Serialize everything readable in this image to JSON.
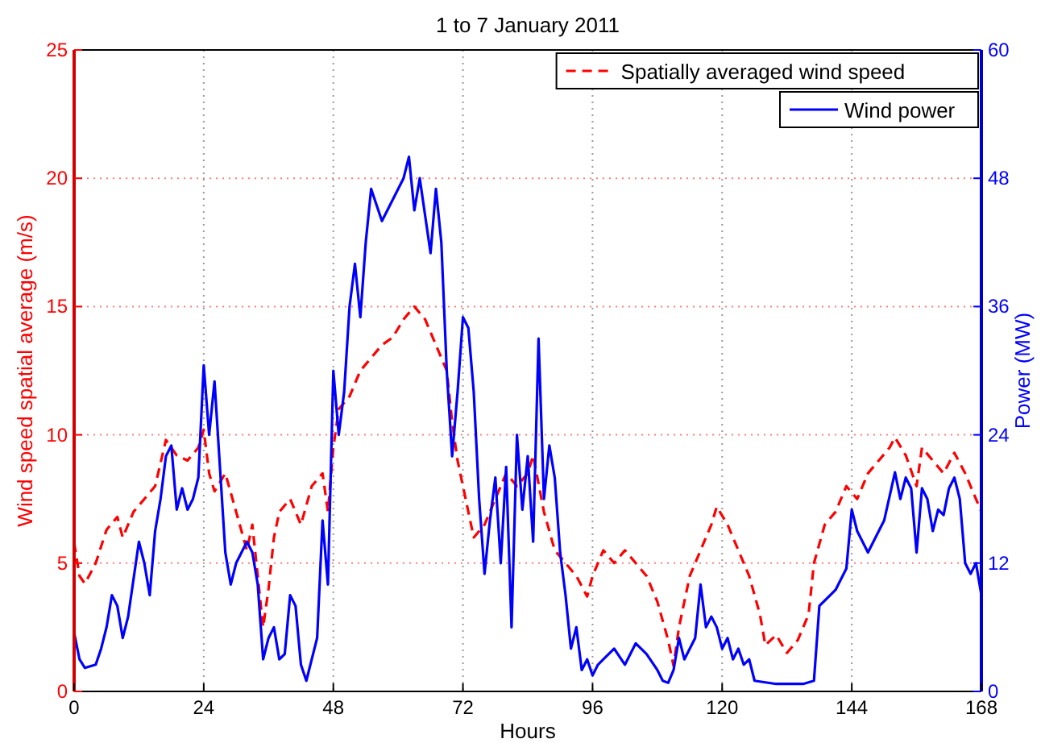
{
  "chart_data": {
    "type": "line",
    "title": "1 to 7 January 2011",
    "xlabel": "Hours",
    "ylabel": "Wind speed spatial average (m/s)",
    "y2label": "Power (MW)",
    "xlim": [
      0,
      168
    ],
    "xticks": [
      0,
      24,
      48,
      72,
      96,
      120,
      144,
      168
    ],
    "ylim": [
      0,
      25
    ],
    "yticks": [
      0,
      5,
      10,
      15,
      20,
      25
    ],
    "y2lim": [
      0,
      60
    ],
    "y2ticks": [
      0,
      12,
      24,
      36,
      48,
      60
    ],
    "grid": true,
    "legend": "top right",
    "series": [
      {
        "name": "Spatially averaged wind speed",
        "color": "#ff0000",
        "line_style": "dashed",
        "x": [
          0,
          1,
          2,
          4,
          6,
          8,
          9,
          11,
          13,
          15,
          17,
          19,
          21,
          23,
          24,
          25,
          26,
          28,
          30,
          32,
          33,
          34,
          35,
          36,
          37,
          38,
          40,
          42,
          44,
          46,
          47,
          48,
          49,
          51,
          53,
          55,
          57,
          59,
          61,
          63,
          65,
          67,
          69,
          70,
          71,
          72,
          74,
          76,
          78,
          80,
          82,
          84,
          85,
          87,
          89,
          91,
          93,
          95,
          96,
          98,
          100,
          102,
          104,
          106,
          108,
          110,
          111,
          112,
          114,
          116,
          118,
          119,
          121,
          123,
          125,
          127,
          128,
          130,
          132,
          134,
          136,
          137,
          139,
          141,
          143,
          145,
          147,
          149,
          151,
          152,
          154,
          156,
          157,
          159,
          161,
          163,
          165,
          167,
          168
        ],
        "values": [
          5.8,
          4.5,
          4.2,
          5,
          6.3,
          6.8,
          6,
          7,
          7.5,
          8,
          9.8,
          9.2,
          9,
          9.5,
          10.2,
          8.5,
          7.8,
          8.5,
          7,
          5.5,
          6.5,
          4.5,
          2.5,
          4,
          6,
          7,
          7.5,
          6.5,
          8,
          8.5,
          7,
          9.5,
          11,
          11.5,
          12.5,
          13,
          13.5,
          13.8,
          14.5,
          15,
          14.5,
          13.5,
          12.5,
          10.5,
          9,
          8,
          6,
          6.5,
          7.5,
          8.5,
          8,
          8.5,
          9.2,
          7,
          5.5,
          5,
          4.5,
          3.7,
          4.5,
          5.5,
          5,
          5.5,
          5,
          4.5,
          3.5,
          2,
          1,
          2.5,
          4.5,
          5.5,
          6.5,
          7.2,
          6.5,
          5.5,
          4.5,
          3,
          1.8,
          2.2,
          1.5,
          2,
          3,
          5,
          6.5,
          7,
          8,
          7.5,
          8.5,
          9,
          9.5,
          9.9,
          9.2,
          8,
          9.5,
          9,
          8.5,
          9.3,
          8.5,
          7.5,
          7
        ]
      },
      {
        "name": "Wind power",
        "color": "#0000ff",
        "line_style": "solid",
        "axis": "y2",
        "x": [
          0,
          1,
          2,
          4,
          5,
          6,
          7,
          8,
          9,
          10,
          12,
          13,
          14,
          15,
          16,
          17,
          18,
          19,
          20,
          21,
          22,
          23,
          24,
          25,
          26,
          27,
          28,
          29,
          30,
          32,
          33,
          34,
          35,
          36,
          37,
          38,
          39,
          40,
          41,
          42,
          43,
          44,
          45,
          46,
          47,
          48,
          49,
          50,
          51,
          52,
          53,
          54,
          55,
          57,
          59,
          61,
          62,
          63,
          64,
          66,
          67,
          68,
          69,
          70,
          71,
          72,
          73,
          74,
          75,
          76,
          77,
          78,
          79,
          80,
          81,
          82,
          83,
          84,
          85,
          86,
          87,
          88,
          89,
          90,
          91,
          92,
          93,
          94,
          95,
          96,
          97,
          98,
          100,
          102,
          104,
          106,
          108,
          109,
          110,
          111,
          112,
          113,
          114,
          115,
          116,
          117,
          118,
          119,
          120,
          121,
          122,
          123,
          124,
          125,
          126,
          130,
          135,
          137,
          138,
          140,
          141,
          142,
          143,
          144,
          145,
          146,
          147,
          148,
          150,
          152,
          153,
          154,
          155,
          156,
          157,
          158,
          159,
          160,
          161,
          162,
          163,
          164,
          165,
          166,
          167,
          168
        ],
        "values": [
          5.5,
          3,
          2.2,
          2.5,
          4,
          6,
          9,
          8,
          5,
          7,
          14,
          12,
          9,
          15,
          18,
          22,
          23,
          17,
          19,
          17,
          18,
          20,
          30.5,
          24,
          29,
          21,
          13,
          10,
          12,
          14,
          13,
          10,
          3,
          5,
          6,
          3,
          3.5,
          9,
          8,
          2.5,
          1,
          3,
          5,
          16,
          10,
          30,
          24,
          28,
          36,
          40,
          35,
          42,
          47,
          44,
          46,
          48,
          50,
          45,
          48,
          41,
          47,
          42,
          30,
          22,
          28,
          35,
          34,
          28,
          18,
          11,
          16,
          20,
          12,
          21,
          6,
          24,
          17,
          22,
          14,
          33,
          18,
          23,
          20,
          13,
          9,
          4,
          6,
          2,
          3,
          1.5,
          2.5,
          3,
          4,
          2.5,
          4.5,
          3.5,
          2,
          1,
          0.8,
          2,
          5,
          3,
          4,
          5,
          10,
          6,
          7,
          6,
          4,
          5,
          3,
          4,
          2.5,
          3,
          1,
          0.7,
          0.7,
          1,
          8,
          9,
          9.5,
          10.5,
          11.5,
          17,
          15,
          14,
          13,
          14,
          16,
          20.5,
          18,
          20,
          19,
          13,
          19,
          18,
          15,
          17,
          16.5,
          19,
          20,
          18,
          12,
          11,
          12,
          9
        ]
      }
    ]
  }
}
